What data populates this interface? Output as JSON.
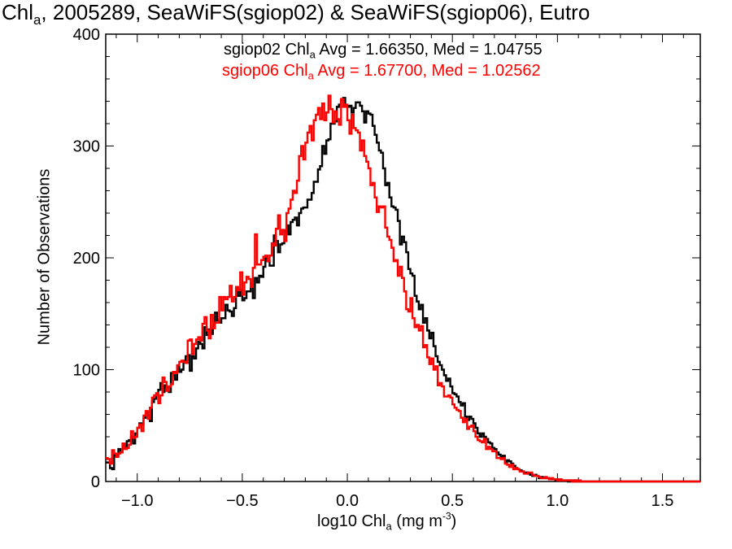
{
  "chart_data": {
    "type": "histogram",
    "title": {
      "prefix": "Chl",
      "sub": "a",
      "rest": ", 2005289, SeaWiFS(sgiop02) & SeaWiFS(sgiop06), Eutro"
    },
    "stats": [
      {
        "name": "sgiop02",
        "label_prefix": "sgiop02 Chl",
        "label_sub": "a",
        "label_rest": " Avg = 1.66350, Med = 1.04755",
        "color": "#000000"
      },
      {
        "name": "sgiop06",
        "label_prefix": "sgiop06 Chl",
        "label_sub": "a",
        "label_rest": " Avg = 1.67700, Med = 1.02562",
        "color": "#ff0000"
      }
    ],
    "xlabel": {
      "prefix": "log10 Chl",
      "sub": "a",
      "mid": " (mg m",
      "sup": "-3",
      "suffix": ")"
    },
    "ylabel": "Number of Observations",
    "xlim": [
      -1.15,
      1.68
    ],
    "ylim": [
      0,
      400
    ],
    "xticks": [
      -1.0,
      -0.5,
      0.0,
      0.5,
      1.0,
      1.5
    ],
    "xtick_labels": [
      "−1.0",
      "−0.5",
      "0.0",
      "0.5",
      "1.0",
      "1.5"
    ],
    "yticks": [
      0,
      100,
      200,
      300,
      400
    ],
    "ytick_labels": [
      "0",
      "100",
      "200",
      "300",
      "400"
    ],
    "bin_start": -1.15,
    "bin_width": 0.01,
    "series": [
      {
        "name": "sgiop02",
        "color": "#000000",
        "values": [
          17,
          17,
          12,
          11,
          24,
          23,
          29,
          26,
          33,
          31,
          36,
          37,
          40,
          34,
          43,
          48,
          52,
          51,
          57,
          62,
          59,
          54,
          71,
          74,
          78,
          82,
          88,
          80,
          86,
          84,
          80,
          97,
          95,
          91,
          103,
          98,
          100,
          108,
          112,
          113,
          99,
          112,
          110,
          119,
          125,
          123,
          119,
          138,
          131,
          136,
          132,
          140,
          151,
          144,
          142,
          146,
          146,
          158,
          153,
          152,
          148,
          155,
          173,
          166,
          171,
          162,
          164,
          170,
          170,
          177,
          164,
          182,
          178,
          184,
          183,
          192,
          200,
          197,
          193,
          193,
          220,
          215,
          205,
          212,
          213,
          224,
          229,
          221,
          232,
          234,
          236,
          229,
          240,
          244,
          245,
          245,
          252,
          252,
          258,
          268,
          268,
          279,
          282,
          300,
          293,
          305,
          306,
          320,
          320,
          322,
          335,
          337,
          341,
          343,
          336,
          335,
          336,
          330,
          334,
          339,
          339,
          336,
          331,
          321,
          331,
          329,
          328,
          318,
          310,
          303,
          296,
          294,
          280,
          265,
          267,
          254,
          246,
          245,
          243,
          233,
          212,
          219,
          214,
          205,
          190,
          186,
          184,
          166,
          161,
          154,
          158,
          142,
          146,
          135,
          128,
          133,
          121,
          112,
          107,
          104,
          100,
          95,
          90,
          92,
          85,
          79,
          78,
          76,
          71,
          68,
          70,
          58,
          55,
          58,
          56,
          52,
          48,
          43,
          40,
          43,
          40,
          38,
          35,
          34,
          30,
          29,
          26,
          24,
          22,
          23,
          17,
          19,
          18,
          16,
          14,
          12,
          11,
          10,
          9,
          8,
          8,
          7,
          6,
          5,
          6,
          5,
          3,
          4,
          3,
          3,
          3,
          2,
          2,
          2,
          1,
          2,
          1,
          1,
          1,
          1,
          0,
          1,
          0,
          1,
          0,
          0,
          0,
          0,
          0,
          0,
          0,
          0,
          0,
          0,
          0,
          0,
          0,
          0,
          0,
          0,
          0,
          0,
          0,
          0,
          0,
          0,
          0,
          0,
          0,
          0,
          0,
          0,
          0,
          0,
          0,
          0,
          0,
          0,
          0,
          0,
          0,
          0,
          0,
          0,
          0,
          0,
          0,
          0,
          0,
          0,
          0,
          0,
          0,
          0,
          0,
          0,
          0,
          0,
          0,
          0,
          0,
          0,
          0,
          0,
          0,
          0,
          0,
          0,
          0,
          0,
          0,
          0,
          0,
          0
        ]
      },
      {
        "name": "sgiop06",
        "color": "#ff0000",
        "values": [
          21,
          20,
          16,
          28,
          25,
          22,
          25,
          26,
          34,
          29,
          30,
          33,
          45,
          39,
          40,
          48,
          51,
          45,
          59,
          63,
          56,
          66,
          75,
          77,
          79,
          70,
          77,
          93,
          89,
          81,
          85,
          87,
          98,
          97,
          104,
          107,
          108,
          107,
          106,
          126,
          127,
          114,
          123,
          127,
          129,
          126,
          141,
          147,
          135,
          128,
          149,
          137,
          142,
          142,
          165,
          153,
          165,
          163,
          165,
          175,
          161,
          165,
          174,
          171,
          187,
          167,
          178,
          183,
          181,
          174,
          191,
          221,
          194,
          194,
          198,
          201,
          202,
          197,
          202,
          213,
          211,
          226,
          238,
          221,
          225,
          215,
          240,
          244,
          252,
          260,
          258,
          269,
          291,
          300,
          288,
          303,
          312,
          318,
          305,
          323,
          328,
          334,
          324,
          338,
          323,
          330,
          345,
          333,
          321,
          331,
          324,
          319,
          342,
          335,
          337,
          323,
          311,
          328,
          316,
          314,
          312,
          296,
          305,
          291,
          286,
          280,
          265,
          267,
          254,
          241,
          246,
          245,
          246,
          227,
          219,
          216,
          209,
          197,
          198,
          184,
          192,
          182,
          170,
          154,
          152,
          164,
          146,
          138,
          140,
          135,
          139,
          120,
          122,
          111,
          105,
          110,
          100,
          103,
          86,
          88,
          85,
          76,
          76,
          77,
          75,
          69,
          66,
          64,
          63,
          57,
          53,
          56,
          47,
          49,
          50,
          45,
          40,
          37,
          36,
          35,
          38,
          29,
          31,
          29,
          27,
          27,
          21,
          21,
          20,
          21,
          16,
          15,
          13,
          15,
          11,
          12,
          11,
          9,
          9,
          7,
          7,
          8,
          8,
          6,
          5,
          5,
          4,
          3,
          3,
          4,
          3,
          2,
          3,
          2,
          2,
          1,
          2,
          1,
          1,
          1,
          1,
          1,
          0,
          1,
          0,
          1,
          0,
          0,
          0,
          0,
          0,
          0,
          0,
          0,
          0,
          0,
          0,
          0,
          0,
          0,
          0,
          0,
          0,
          0,
          0,
          0,
          0,
          0,
          0,
          0,
          0,
          0,
          0,
          0,
          0,
          0,
          0,
          0,
          0,
          0,
          0,
          0,
          0,
          0,
          0,
          0,
          0,
          0,
          0,
          0,
          0,
          0,
          0,
          0,
          0,
          0,
          0,
          0,
          0,
          0,
          0,
          0,
          0,
          0,
          0,
          0,
          0,
          0,
          0,
          0,
          0,
          0,
          0,
          0,
          0,
          0
        ]
      }
    ]
  }
}
